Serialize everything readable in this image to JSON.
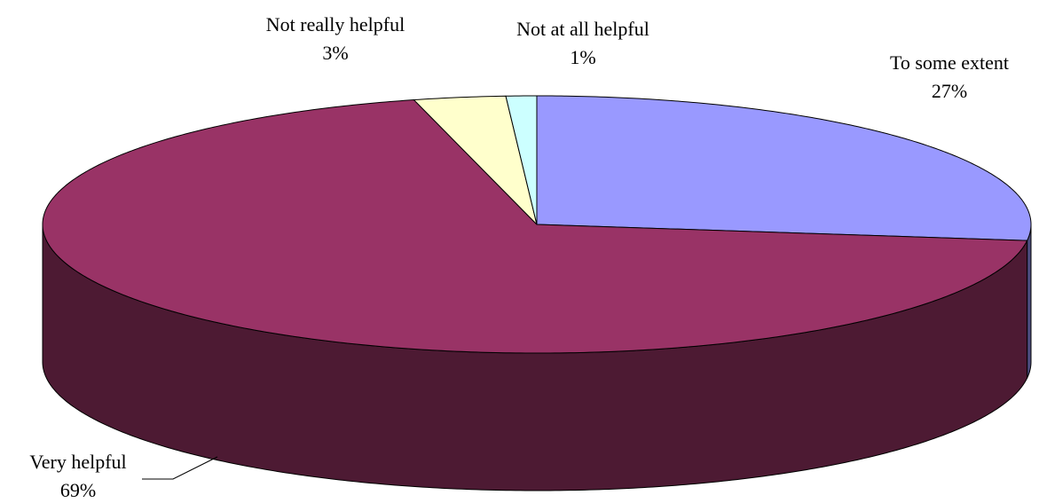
{
  "chart_data": {
    "type": "pie3d",
    "categories": [
      "To some extent",
      "Very helpful",
      "Not really helpful",
      "Not at all helpful"
    ],
    "values": [
      27,
      69,
      3,
      1
    ],
    "value_labels": [
      "27%",
      "69%",
      "3%",
      "1%"
    ],
    "colors": [
      "#9999ff",
      "#993366",
      "#ffffcc",
      "#ccffff"
    ],
    "side_colors": [
      "#4d4d80",
      "#4d1a33",
      "#808066",
      "#668080"
    ]
  }
}
